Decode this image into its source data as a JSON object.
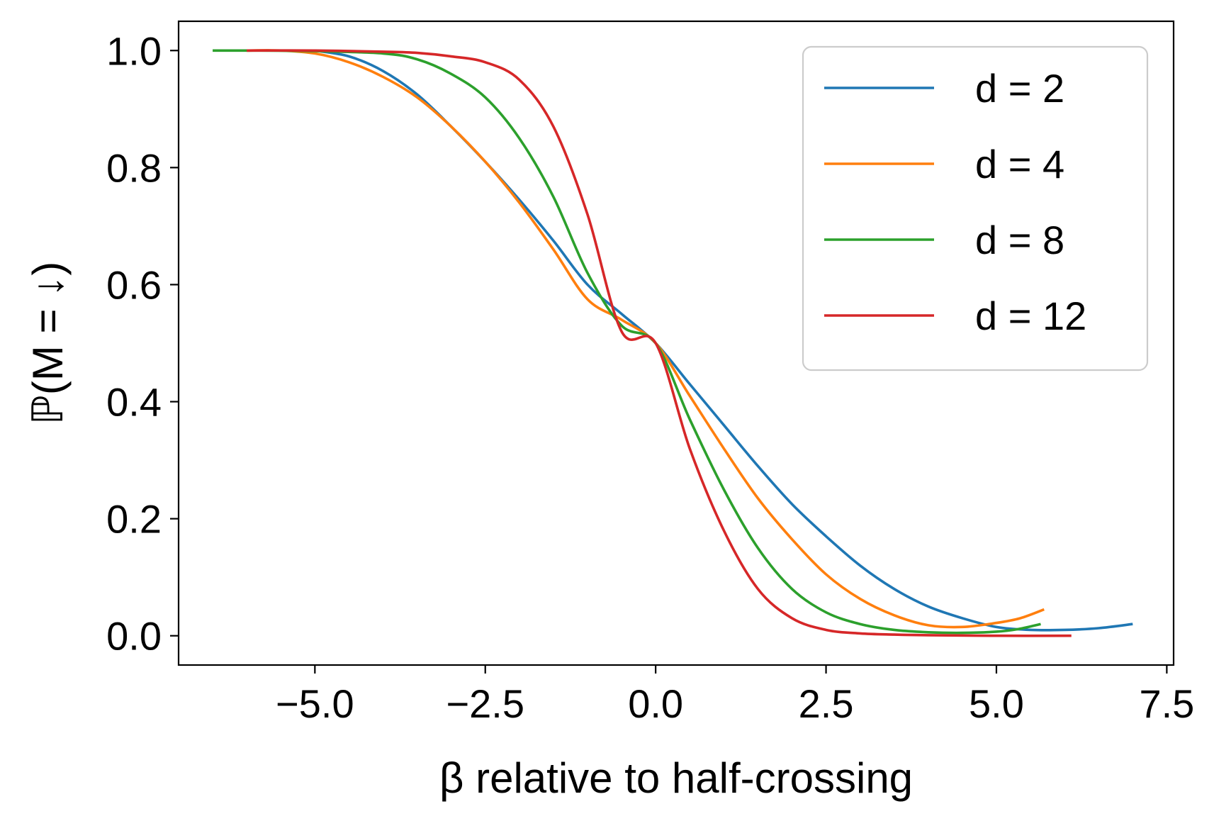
{
  "chart_data": {
    "type": "line",
    "xlabel": "β relative to half-crossing",
    "ylabel": "ℙ(M = ↓)",
    "xlim": [
      -7.0,
      7.6
    ],
    "ylim": [
      -0.05,
      1.05
    ],
    "x_ticks": [
      -5.0,
      -2.5,
      0.0,
      2.5,
      5.0,
      7.5
    ],
    "x_tick_labels": [
      "−5.0",
      "−2.5",
      "0.0",
      "2.5",
      "5.0",
      "7.5"
    ],
    "y_ticks": [
      0.0,
      0.2,
      0.4,
      0.6,
      0.8,
      1.0
    ],
    "y_tick_labels": [
      "0.0",
      "0.2",
      "0.4",
      "0.6",
      "0.8",
      "1.0"
    ],
    "grid": false,
    "legend_position": "top-right",
    "series": [
      {
        "name": "d = 2",
        "color": "#1f77b4",
        "x": [
          -5.0,
          -4.5,
          -4.0,
          -3.5,
          -3.0,
          -2.5,
          -2.0,
          -1.5,
          -1.0,
          -0.5,
          0.0,
          0.5,
          1.0,
          1.5,
          2.0,
          2.5,
          3.0,
          3.5,
          4.0,
          4.5,
          5.0,
          5.5,
          6.0,
          6.5,
          7.0
        ],
        "y": [
          1.0,
          0.99,
          0.965,
          0.925,
          0.87,
          0.81,
          0.745,
          0.675,
          0.6,
          0.55,
          0.5,
          0.43,
          0.36,
          0.29,
          0.225,
          0.17,
          0.12,
          0.08,
          0.05,
          0.03,
          0.015,
          0.01,
          0.01,
          0.013,
          0.02
        ]
      },
      {
        "name": "d = 4",
        "color": "#ff7f0e",
        "x": [
          -6.0,
          -5.5,
          -5.0,
          -4.5,
          -4.0,
          -3.5,
          -3.0,
          -2.5,
          -2.0,
          -1.5,
          -1.0,
          -0.5,
          0.0,
          0.5,
          1.0,
          1.5,
          2.0,
          2.5,
          3.0,
          3.5,
          4.0,
          4.5,
          5.0,
          5.35,
          5.7
        ],
        "y": [
          1.0,
          1.0,
          0.995,
          0.98,
          0.955,
          0.92,
          0.87,
          0.81,
          0.74,
          0.66,
          0.575,
          0.54,
          0.5,
          0.41,
          0.32,
          0.235,
          0.165,
          0.105,
          0.063,
          0.035,
          0.018,
          0.015,
          0.022,
          0.03,
          0.045
        ]
      },
      {
        "name": "d = 8",
        "color": "#2ca02c",
        "x": [
          -6.5,
          -6.0,
          -5.0,
          -4.0,
          -3.5,
          -3.0,
          -2.5,
          -2.0,
          -1.5,
          -1.0,
          -0.5,
          0.0,
          0.5,
          1.0,
          1.5,
          2.0,
          2.5,
          3.0,
          3.5,
          4.0,
          4.5,
          5.0,
          5.3,
          5.65
        ],
        "y": [
          1.0,
          1.0,
          0.999,
          0.995,
          0.985,
          0.96,
          0.92,
          0.85,
          0.75,
          0.62,
          0.53,
          0.5,
          0.37,
          0.25,
          0.15,
          0.08,
          0.04,
          0.02,
          0.01,
          0.006,
          0.005,
          0.007,
          0.011,
          0.02
        ]
      },
      {
        "name": "d = 12",
        "color": "#d62728",
        "x": [
          -6.0,
          -5.0,
          -4.0,
          -3.5,
          -3.0,
          -2.5,
          -2.0,
          -1.5,
          -1.0,
          -0.5,
          0.0,
          0.5,
          1.0,
          1.5,
          2.0,
          2.5,
          3.0,
          3.5,
          4.0,
          5.0,
          6.1
        ],
        "y": [
          1.0,
          1.0,
          0.998,
          0.996,
          0.99,
          0.98,
          0.95,
          0.87,
          0.72,
          0.52,
          0.5,
          0.32,
          0.18,
          0.08,
          0.03,
          0.01,
          0.004,
          0.002,
          0.001,
          0.0,
          0.0
        ]
      }
    ]
  }
}
